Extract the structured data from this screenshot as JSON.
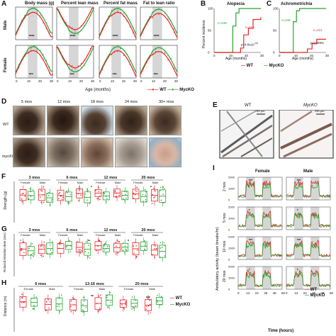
{
  "colors": {
    "wt": "#e8262a",
    "myc": "#27a42f",
    "shade": "#d6d6d6",
    "text": "#111111"
  },
  "panels": {
    "A": "A",
    "B": "B",
    "C": "C",
    "D": "D",
    "E": "E",
    "F": "F",
    "G": "G",
    "H": "H",
    "I": "I"
  },
  "panelA": {
    "titles": [
      "Body mass (g)",
      "Percent lean mass",
      "Percent fat mass",
      "Fat to lean ratio"
    ],
    "rows": [
      "Male",
      "Female"
    ],
    "xlabel": "Age (months)",
    "ticks": [
      "0",
      "10",
      "20",
      "30"
    ],
    "sig": "****",
    "sig_female": "***",
    "legend_wt": "WT",
    "legend_myc": "MycKO"
  },
  "panelB": {
    "title": "Alopecia",
    "p": "p=4.8x10",
    "exp": "-16",
    "n_myc": "n=249",
    "n_wt": "n=213"
  },
  "panelC": {
    "title": "Achromotrichia",
    "p": "p<0.0001",
    "n_myc": "n=249",
    "n_wt": "n=212"
  },
  "panelBC": {
    "ylabel": "Percent incidence",
    "xlabel": "Age (months)",
    "ticks": [
      "0",
      "10",
      "20",
      "30"
    ],
    "yticks": [
      "0",
      "50",
      "100"
    ]
  },
  "panelD": {
    "ages": [
      "5 mos",
      "12 mos",
      "18 mos",
      "24 mos",
      "30+ mos"
    ],
    "row_wt": "WT",
    "row_myc": "mycKO"
  },
  "panelE": {
    "left": "WT",
    "right": "MycKO",
    "scale": "250 μm"
  },
  "panelF": {
    "ylabel": "Strength (g)",
    "ages": [
      "3 mos",
      "6 mos",
      "12 mos",
      "20 mos"
    ],
    "sexes": [
      "Female",
      "Male"
    ],
    "sig": "*"
  },
  "panelG": {
    "ylabel": "Rotarod retention time (sec)",
    "ages": [
      "3 mos",
      "6 mos",
      "12 mos",
      "20 mos"
    ],
    "sexes": [
      "Female",
      "Male"
    ],
    "sig": "*"
  },
  "panelH": {
    "ylabel": "Distance (m)",
    "ages": [
      "6 mos",
      "13-16 mos",
      "20 mos"
    ],
    "sexes": [
      "Female",
      "Male"
    ],
    "sig2": "**",
    "sig3": "***"
  },
  "legendFGH": {
    "wt": "WT",
    "myc": "MycKO"
  },
  "panelI": {
    "ylabel": "Ambulatory activity (beam breaks/hr)",
    "xlabel": "Time (hours)",
    "cols": [
      "Female",
      "Male"
    ],
    "rows": [
      "2 mos",
      "5 mos",
      "10 mos",
      "20 mos"
    ],
    "ticks": [
      "0",
      "12",
      "24",
      "36",
      "48",
      "60"
    ],
    "yticks": [
      "0",
      "1000",
      "2000"
    ],
    "legend_wt": "WT",
    "legend_myc": "MycKO"
  }
}
